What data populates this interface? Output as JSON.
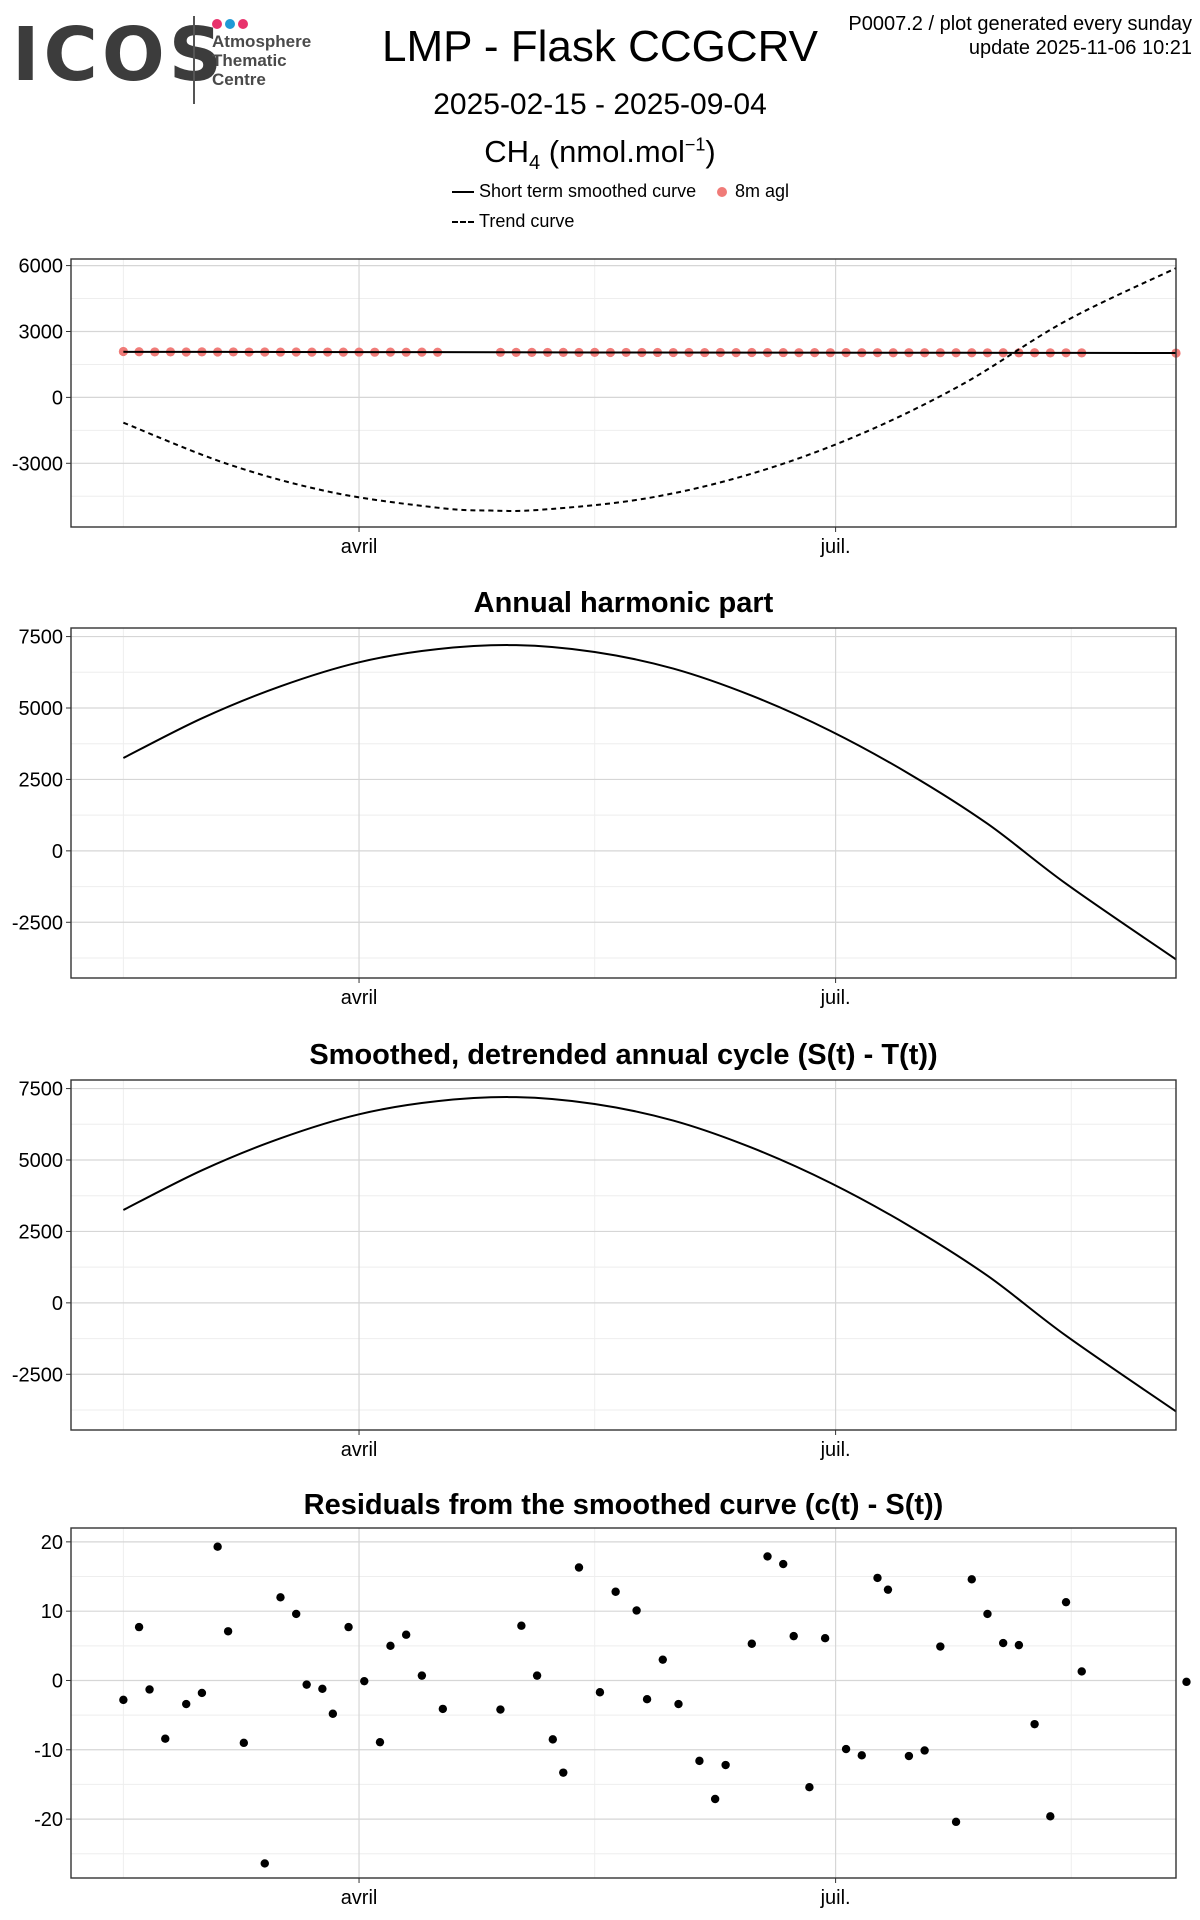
{
  "logo": {
    "wordmark": "ICOS",
    "subtitle": [
      "Atmosphere",
      "Thematic",
      "Centre"
    ],
    "dot_colors": [
      "#e8326c",
      "#1e9ad6",
      "#e8326c"
    ]
  },
  "header": {
    "title": "LMP - Flask CCGCRV",
    "date_range": "2025-02-15 - 2025-09-04",
    "species": "CH",
    "species_sub": "4",
    "unit_pre": " (nmol.mol",
    "unit_sup": "−1",
    "unit_post": ")",
    "meta_line1": "P0007.2 / plot generated every sunday",
    "meta_line2": "update  2025-11-06 10:21"
  },
  "legend": {
    "short_term": "Short term smoothed curve",
    "trend": "Trend curve",
    "points": "8m agl"
  },
  "colors": {
    "points": "#f07b78",
    "line": "#000000",
    "grid_major": "#d6d6d6",
    "grid_minor": "#eeeeee",
    "panel_border": "#333333"
  },
  "chart_data": [
    {
      "type": "line",
      "title": "",
      "xlabel": "",
      "ylabel": "",
      "x_ticks": [
        "avril",
        "juil."
      ],
      "x_tick_days": [
        45,
        136
      ],
      "xlim_days": [
        -10,
        201
      ],
      "ylim": [
        -5900,
        6300
      ],
      "y_ticks": [
        6000,
        3000,
        0,
        -3000
      ],
      "y_tick_labels": [
        "6000",
        "3000",
        "0",
        "-3000"
      ],
      "y_minor": [
        4500,
        1500,
        -1500,
        -4500
      ],
      "series": [
        {
          "name": "8m agl",
          "kind": "points",
          "x": [
            0,
            3,
            6,
            9,
            12,
            15,
            18,
            21,
            24,
            27,
            30,
            33,
            36,
            39,
            42,
            45,
            48,
            51,
            54,
            57,
            60,
            72,
            75,
            78,
            81,
            84,
            87,
            90,
            93,
            96,
            99,
            102,
            105,
            108,
            111,
            114,
            117,
            120,
            123,
            126,
            129,
            132,
            135,
            138,
            141,
            144,
            147,
            150,
            153,
            156,
            159,
            162,
            165,
            168,
            171,
            174,
            177,
            180,
            183,
            201
          ],
          "y": [
            2088,
            2079,
            2070,
            2072,
            2068,
            2071,
            2065,
            2070,
            2064,
            2068,
            2063,
            2066,
            2061,
            2064,
            2060,
            2063,
            2058,
            2061,
            2057,
            2060,
            2056,
            2052,
            2049,
            2051,
            2047,
            2050,
            2046,
            2048,
            2044,
            2047,
            2043,
            2046,
            2041,
            2044,
            2040,
            2043,
            2039,
            2042,
            2038,
            2040,
            2036,
            2039,
            2035,
            2037,
            2034,
            2036,
            2033,
            2035,
            2032,
            2034,
            2031,
            2033,
            2030,
            2032,
            2029,
            2031,
            2028,
            2030,
            2027,
            2018
          ]
        },
        {
          "name": "Short term smoothed curve",
          "kind": "line",
          "x": [
            0,
            30,
            60,
            90,
            120,
            150,
            180,
            201
          ],
          "y": [
            2075,
            2068,
            2058,
            2046,
            2037,
            2031,
            2027,
            2021
          ]
        },
        {
          "name": "Trend curve",
          "kind": "dashed",
          "x": [
            0,
            20,
            40,
            60,
            70,
            80,
            100,
            120,
            140,
            160,
            180,
            201
          ],
          "y": [
            -1150,
            -3041,
            -4331,
            -5021,
            -5151,
            -5111,
            -4591,
            -3471,
            -1752,
            567,
            3486,
            5883
          ]
        }
      ]
    },
    {
      "type": "line",
      "title": "Annual harmonic part",
      "xlabel": "",
      "ylabel": "",
      "x_ticks": [
        "avril",
        "juil."
      ],
      "x_tick_days": [
        45,
        136
      ],
      "xlim_days": [
        -10,
        201
      ],
      "ylim": [
        -4450,
        7800
      ],
      "y_ticks": [
        7500,
        5000,
        2500,
        0,
        -2500
      ],
      "y_tick_labels": [
        "7500",
        "5000",
        "2500",
        "0",
        "-2500"
      ],
      "y_minor": [
        6250,
        3750,
        1250,
        -1250,
        -3750
      ],
      "series": [
        {
          "name": "Annual harmonic part",
          "kind": "line",
          "x": [
            0,
            15,
            30,
            45,
            60,
            75,
            90,
            105,
            120,
            135,
            150,
            165,
            180,
            201
          ],
          "y": [
            3250,
            4640,
            5760,
            6600,
            7060,
            7200,
            6960,
            6380,
            5430,
            4200,
            2700,
            950,
            -1150,
            -3800
          ]
        }
      ]
    },
    {
      "type": "line",
      "title": "Smoothed, detrended annual cycle (S(t) - T(t))",
      "xlabel": "",
      "ylabel": "",
      "x_ticks": [
        "avril",
        "juil."
      ],
      "x_tick_days": [
        45,
        136
      ],
      "xlim_days": [
        -10,
        201
      ],
      "ylim": [
        -4450,
        7800
      ],
      "y_ticks": [
        7500,
        5000,
        2500,
        0,
        -2500
      ],
      "y_tick_labels": [
        "7500",
        "5000",
        "2500",
        "0",
        "-2500"
      ],
      "y_minor": [
        6250,
        3750,
        1250,
        -1250,
        -3750
      ],
      "series": [
        {
          "name": "Smoothed, detrended annual cycle",
          "kind": "line",
          "x": [
            0,
            15,
            30,
            45,
            60,
            75,
            90,
            105,
            120,
            135,
            150,
            165,
            180,
            201
          ],
          "y": [
            3250,
            4640,
            5760,
            6600,
            7060,
            7200,
            6960,
            6380,
            5430,
            4200,
            2700,
            950,
            -1150,
            -3800
          ]
        }
      ]
    },
    {
      "type": "scatter",
      "title": "Residuals from the smoothed curve (c(t) - S(t))",
      "xlabel": "",
      "ylabel": "",
      "x_ticks": [
        "avril",
        "juil."
      ],
      "x_tick_days": [
        45,
        136
      ],
      "xlim_days": [
        -10,
        201
      ],
      "ylim": [
        -28.5,
        22
      ],
      "y_ticks": [
        20,
        10,
        0,
        -10,
        -20
      ],
      "y_tick_labels": [
        "20",
        "10",
        "0",
        "-10",
        "-20"
      ],
      "y_minor": [
        15,
        5,
        -5,
        -15,
        -25
      ],
      "series": [
        {
          "name": "Residuals",
          "kind": "points",
          "x": [
            0,
            3,
            5,
            8,
            12,
            15,
            18,
            20,
            23,
            27,
            30,
            33,
            35,
            38,
            40,
            43,
            46,
            49,
            51,
            54,
            57,
            61,
            72,
            76,
            79,
            82,
            84,
            87,
            91,
            94,
            98,
            100,
            103,
            106,
            110,
            113,
            115,
            120,
            123,
            126,
            128,
            131,
            134,
            138,
            141,
            144,
            146,
            150,
            153,
            156,
            159,
            162,
            165,
            168,
            171,
            174,
            177,
            180,
            183,
            203
          ],
          "y": [
            -2.8,
            7.7,
            -1.3,
            -8.4,
            -3.4,
            -1.8,
            19.3,
            7.1,
            -9,
            -26.4,
            12,
            9.6,
            -0.6,
            -1.2,
            -4.8,
            7.7,
            -0.1,
            -8.9,
            5,
            6.6,
            0.7,
            -4.1,
            -4.2,
            7.9,
            0.7,
            -8.5,
            -13.3,
            16.3,
            -1.7,
            12.8,
            10.1,
            -2.7,
            3,
            -3.4,
            -11.6,
            -17.1,
            -12.2,
            5.3,
            17.9,
            16.8,
            6.4,
            -15.4,
            6.1,
            -9.9,
            -10.8,
            14.8,
            13.1,
            -10.9,
            -10.1,
            4.9,
            -20.4,
            14.6,
            9.6,
            5.4,
            5.1,
            -6.3,
            -19.6,
            11.3,
            1.3,
            -0.2
          ]
        }
      ]
    }
  ]
}
